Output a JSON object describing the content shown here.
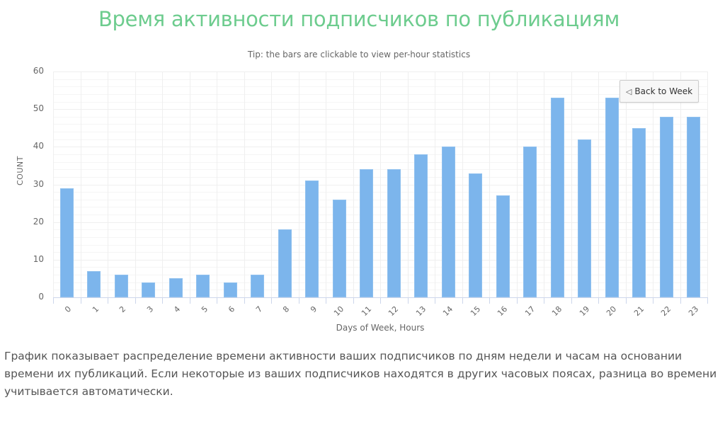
{
  "page": {
    "title": "Время активности подписчиков по публикациям",
    "description": "График показывает распределение времени активности ваших подписчиков по дням недели и часам на основании времени их публикаций. Если некоторые из ваших подписчиков находятся в других часовых поясах, разница во времени учитывается автоматически."
  },
  "chart": {
    "subtitle": "Tip: the bars are clickable to view per-hour statistics",
    "back_button": {
      "label": "Back to Week",
      "icon": "triangle-left-icon"
    },
    "bar_color": "#7cb5ec",
    "title_color": "#6dcc8e"
  },
  "chart_data": {
    "type": "bar",
    "title": "Время активности подписчиков по публикациям",
    "subtitle": "Tip: the bars are clickable to view per-hour statistics",
    "xlabel": "Days of Week, Hours",
    "ylabel": "COUNT",
    "ylim": [
      0,
      60
    ],
    "yticks": [
      0,
      10,
      20,
      30,
      40,
      50,
      60
    ],
    "grid": true,
    "legend": "none",
    "categories": [
      "0",
      "1",
      "2",
      "3",
      "4",
      "5",
      "6",
      "7",
      "8",
      "9",
      "10",
      "11",
      "12",
      "13",
      "14",
      "15",
      "16",
      "17",
      "18",
      "19",
      "20",
      "21",
      "22",
      "23"
    ],
    "values": [
      29,
      7,
      6,
      4,
      5,
      6,
      4,
      6,
      18,
      31,
      26,
      34,
      34,
      38,
      40,
      33,
      27,
      40,
      53,
      42,
      53,
      45,
      48,
      48
    ]
  }
}
